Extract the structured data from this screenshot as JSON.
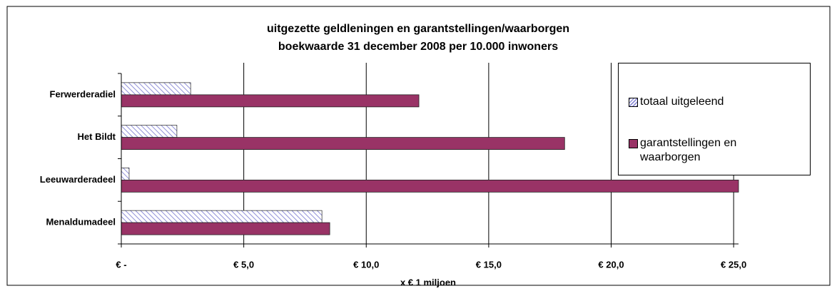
{
  "chart_data": {
    "type": "hbar",
    "title": [
      "uitgezette geldleningen en garantstellingen/waarborgen",
      "boekwaarde 31 december 2008 per 10.000 inwoners"
    ],
    "xlabel": "x € 1 miljoen",
    "categories": [
      "Ferwerderadiel",
      "Het Bildt",
      "Leeuwarderadeel",
      "Menaldumadeel"
    ],
    "series": [
      {
        "name": "totaal uitgeleend",
        "color": "#c8c8f0",
        "values": [
          2.83,
          2.27,
          0.32,
          8.19
        ]
      },
      {
        "name": "garantstellingen en waarborgen",
        "color": "#993366",
        "values": [
          12.15,
          18.1,
          25.2,
          8.51
        ]
      }
    ],
    "xlim": [
      0,
      25.2
    ],
    "xticks": [
      {
        "value": 0,
        "label": "€ -"
      },
      {
        "value": 5,
        "label": "€ 5,0"
      },
      {
        "value": 10,
        "label": "€ 10,0"
      },
      {
        "value": 15,
        "label": "€ 15,0"
      },
      {
        "value": 20,
        "label": "€ 20,0"
      },
      {
        "value": 25,
        "label": "€ 25,0"
      }
    ],
    "grid": true,
    "legend": "top-right"
  }
}
